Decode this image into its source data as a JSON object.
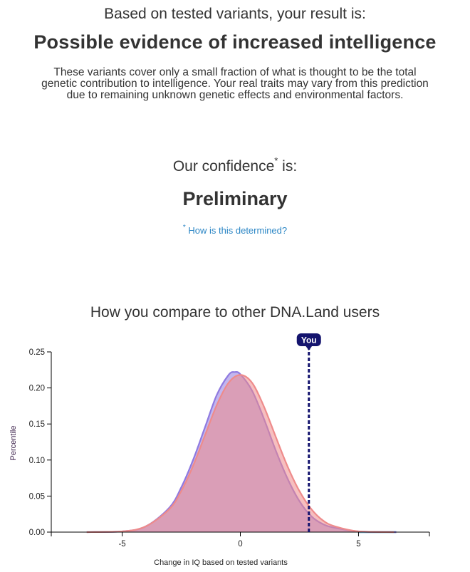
{
  "summary": {
    "lead": "Based on tested variants, your result is:",
    "result": "Possible evidence of increased intelligence",
    "disclaimer": "These variants cover only a small fraction of what is thought to be the total genetic contribution to intelligence. Your real traits may vary from this prediction due to remaining unknown genetic effects and environmental factors."
  },
  "confidence": {
    "label": "Our confidence",
    "star": "*",
    "suffix": " is:",
    "level": "Preliminary",
    "link_star": "*",
    "link_text": " How is this determined?"
  },
  "comparison_title": "How you compare to other DNA.Land users",
  "marker_label": "You",
  "colors": {
    "text": "#333333",
    "link": "#2b86c5",
    "series_a": "#8f7ae0",
    "series_b": "#ee8b8b",
    "overlap": "#c9a0b0",
    "marker": "#14146e",
    "tail": "#9fd1ee"
  },
  "chart_data": {
    "type": "area",
    "xlabel": "Change in IQ based on tested variants",
    "ylabel": "Percentile",
    "xlim": [
      -8,
      8
    ],
    "ylim": [
      0,
      0.25
    ],
    "xticks": [
      -5,
      0,
      5
    ],
    "xtick_labels": [
      "-5",
      "0",
      "5"
    ],
    "yticks": [
      0,
      0.05,
      0.1,
      0.15,
      0.2,
      0.25
    ],
    "ytick_labels": [
      "0.00",
      "0.05",
      "0.10",
      "0.15",
      "0.20",
      "0.25"
    ],
    "marker_x": 2.9,
    "series": [
      {
        "x": [
          -6.5,
          -5,
          -4,
          -3,
          -2.5,
          -2,
          -1.5,
          -1,
          -0.5,
          -0.25,
          0,
          0.5,
          1,
          1.5,
          2,
          2.5,
          3,
          3.5,
          4,
          5,
          6.6
        ],
        "values": [
          0,
          0.001,
          0.008,
          0.034,
          0.062,
          0.1,
          0.145,
          0.19,
          0.218,
          0.222,
          0.219,
          0.196,
          0.157,
          0.113,
          0.074,
          0.043,
          0.022,
          0.011,
          0.006,
          0.001,
          0
        ]
      },
      {
        "x": [
          -6.5,
          -5,
          -4,
          -3,
          -2.5,
          -2,
          -1.5,
          -1,
          -0.5,
          0,
          0.5,
          1,
          1.5,
          2,
          2.5,
          3,
          3.5,
          4,
          5,
          6.5
        ],
        "values": [
          0,
          0.001,
          0.008,
          0.032,
          0.057,
          0.092,
          0.134,
          0.176,
          0.207,
          0.218,
          0.207,
          0.174,
          0.132,
          0.091,
          0.057,
          0.032,
          0.016,
          0.008,
          0.001,
          0
        ]
      }
    ]
  }
}
